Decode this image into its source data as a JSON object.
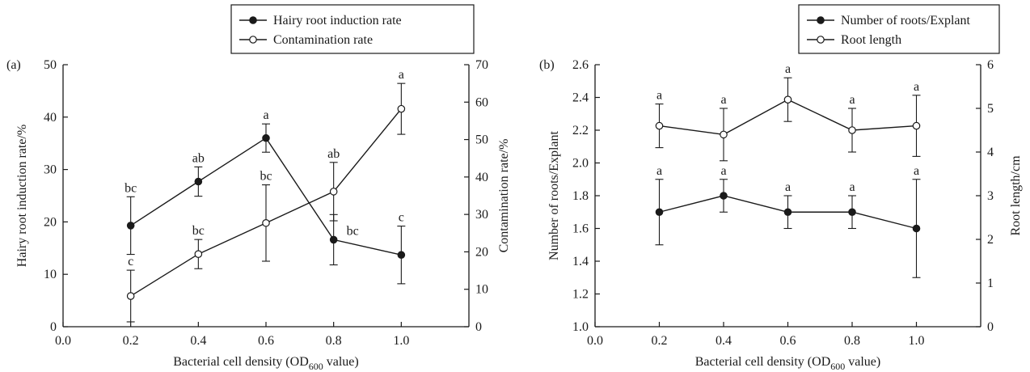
{
  "colors": {
    "ink": "#1a1a1a",
    "open_marker_fill": "#ffffff",
    "background": "#ffffff"
  },
  "chart_data": [
    {
      "type": "line",
      "panel_label": "(a)",
      "x": [
        0.2,
        0.4,
        0.6,
        0.8,
        1.0
      ],
      "xlim": [
        0.0,
        1.2
      ],
      "xticks": [
        0.0,
        0.2,
        0.4,
        0.6,
        0.8,
        1.0
      ],
      "xtick_labels": [
        "0.0",
        "0.2",
        "0.4",
        "0.6",
        "0.8",
        "1.0"
      ],
      "xlabel": {
        "prefix": "Bacterial cell density (OD",
        "subscript": "600",
        "suffix": " value)"
      },
      "ylabel": "Hairy root induction rate/%",
      "ylim": [
        0,
        50
      ],
      "yticks": [
        0,
        10,
        20,
        30,
        40,
        50
      ],
      "ytick_labels": [
        "0",
        "10",
        "20",
        "30",
        "40",
        "50"
      ],
      "y2label": "Contamination rate/%",
      "y2lim": [
        0,
        70
      ],
      "y2ticks": [
        0,
        10,
        20,
        30,
        40,
        50,
        60,
        70
      ],
      "y2tick_labels": [
        "0",
        "10",
        "20",
        "30",
        "40",
        "50",
        "60",
        "70"
      ],
      "legend_position": "top-right",
      "series": [
        {
          "name": "Hairy root induction rate",
          "axis": "left",
          "marker": "filled",
          "values": [
            19.3,
            27.7,
            36.0,
            16.6,
            13.7
          ],
          "errors": [
            5.5,
            2.8,
            2.7,
            4.8,
            5.5
          ],
          "letters": [
            "bc",
            "ab",
            "a",
            "bc",
            "c"
          ]
        },
        {
          "name": "Contamination rate",
          "axis": "right",
          "marker": "open",
          "values": [
            8.2,
            19.4,
            27.7,
            36.1,
            58.2
          ],
          "errors": [
            6.9,
            3.9,
            10.2,
            7.8,
            6.8
          ],
          "letters": [
            "c",
            "bc",
            "bc",
            "ab",
            "a"
          ]
        }
      ],
      "grid": false
    },
    {
      "type": "line",
      "panel_label": "(b)",
      "x": [
        0.2,
        0.4,
        0.6,
        0.8,
        1.0
      ],
      "xlim": [
        0.0,
        1.2
      ],
      "xticks": [
        0.0,
        0.2,
        0.4,
        0.6,
        0.8,
        1.0
      ],
      "xtick_labels": [
        "0.0",
        "0.2",
        "0.4",
        "0.6",
        "0.8",
        "1.0"
      ],
      "xlabel": {
        "prefix": "Bacterial cell density (OD",
        "subscript": "600",
        "suffix": " value)"
      },
      "ylabel": "Number of roots/Explant",
      "ylim": [
        1.0,
        2.6
      ],
      "yticks": [
        1.0,
        1.2,
        1.4,
        1.6,
        1.8,
        2.0,
        2.2,
        2.4,
        2.6
      ],
      "ytick_labels": [
        "1.0",
        "1.2",
        "1.4",
        "1.6",
        "1.8",
        "2.0",
        "2.2",
        "2.4",
        "2.6"
      ],
      "y2label": "Root length/cm",
      "y2lim": [
        0,
        6
      ],
      "y2ticks": [
        0,
        1,
        2,
        3,
        4,
        5,
        6
      ],
      "y2tick_labels": [
        "0",
        "1",
        "2",
        "3",
        "4",
        "5",
        "6"
      ],
      "legend_position": "top-right",
      "series": [
        {
          "name": "Number of roots/Explant",
          "axis": "left",
          "marker": "filled",
          "values": [
            1.7,
            1.8,
            1.7,
            1.7,
            1.6
          ],
          "errors": [
            0.2,
            0.1,
            0.1,
            0.1,
            0.3
          ],
          "letters": [
            "a",
            "a",
            "a",
            "a",
            "a"
          ]
        },
        {
          "name": "Root length",
          "axis": "right",
          "marker": "open",
          "values": [
            4.6,
            4.4,
            5.2,
            4.5,
            4.6
          ],
          "errors": [
            0.5,
            0.6,
            0.5,
            0.5,
            0.7
          ],
          "letters": [
            "a",
            "a",
            "a",
            "a",
            "a"
          ]
        }
      ],
      "grid": false
    }
  ]
}
